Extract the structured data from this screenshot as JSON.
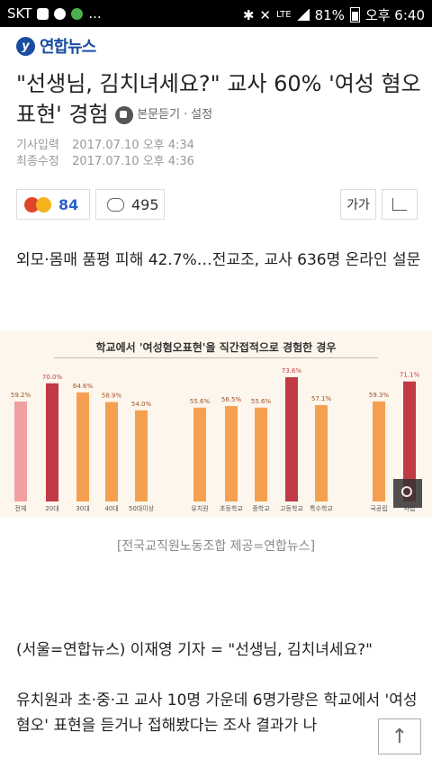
{
  "status_bar": {
    "carrier": "SKT",
    "extra": "...",
    "network": "LTE",
    "battery": "81%",
    "time": "오후 6:40"
  },
  "header": {
    "logo_text": "연합뉴스"
  },
  "article": {
    "title": "\"선생님, 김치녀세요?\" 교사 60% '여성 혐오 표현' 경험",
    "listen_label": "본문듣기",
    "settings_label": "설정",
    "input_label": "기사입력",
    "input_date": "2017.07.10 오후 4:34",
    "modified_label": "최종수정",
    "modified_date": "2017.07.10 오후 4:36",
    "reaction_count": "84",
    "comment_count": "495",
    "font_label": "가가",
    "subhead": "외모·몸매 품평 피해 42.7%…전교조, 교사 636명 온라인 설문",
    "caption": "[전국교직원노동조합 제공=연합뉴스]",
    "para1": "(서울=연합뉴스) 이재영 기자 = \"선생님, 김치녀세요?\"",
    "para2": "유치원과 초·중·고 교사 10명 가운데 6명가량은 학교에서 '여성혐오' 표현을 듣거나 접해봤다는 조사 결과가 나"
  },
  "colors": {
    "brand": "#1a4da1",
    "bar_light": "#f0a0a0",
    "bar_orange": "#f5a050",
    "bar_dark": "#c23a45",
    "reaction_blue": "#2a62c9"
  },
  "chart_data": {
    "type": "bar",
    "title": "학교에서 '여성혐오표현'을 직간접적으로 경험한 경우",
    "categories": [
      "전체",
      "20대",
      "30대",
      "40대",
      "50대이상",
      "유치원",
      "초등학교",
      "중학교",
      "고등학교",
      "특수학교",
      "국공립",
      "사립"
    ],
    "values": [
      59.2,
      70.0,
      64.6,
      58.9,
      54.0,
      55.6,
      56.5,
      55.6,
      73.6,
      57.1,
      59.3,
      71.1
    ],
    "value_labels": [
      "59.2%",
      "70.0%",
      "64.6%",
      "58.9%",
      "54.0%",
      "55.6%",
      "56.5%",
      "55.6%",
      "73.6%",
      "57.1%",
      "59.3%",
      "71.1%"
    ],
    "bar_colors": [
      "light",
      "dark",
      "orange",
      "orange",
      "orange",
      "orange",
      "orange",
      "orange",
      "dark",
      "orange",
      "orange",
      "dark"
    ],
    "groups": [
      [
        "전체"
      ],
      [
        "20대",
        "30대",
        "40대",
        "50대이상"
      ],
      [
        "유치원",
        "초등학교",
        "중학교",
        "고등학교",
        "특수학교"
      ],
      [
        "국공립",
        "사립"
      ]
    ],
    "ylim": [
      0,
      80
    ]
  }
}
